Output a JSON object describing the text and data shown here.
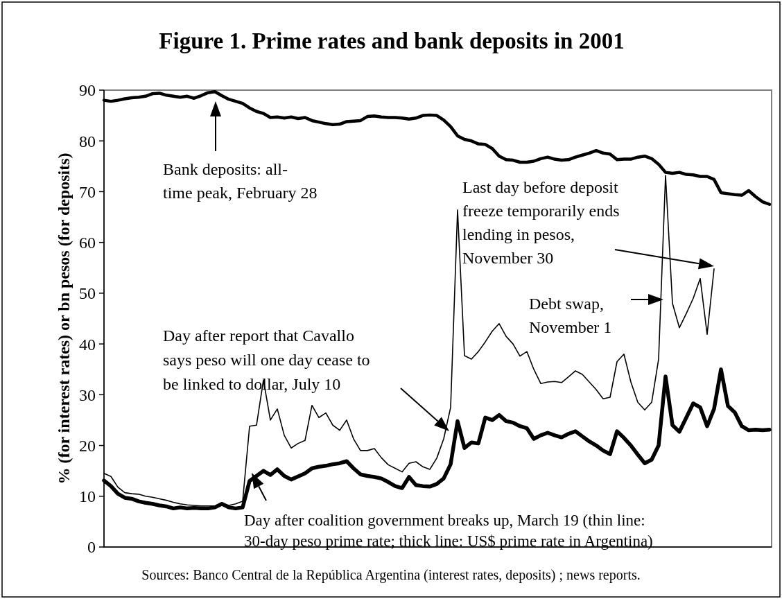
{
  "chart_data": {
    "type": "line",
    "title": "Figure 1. Prime rates and bank deposits in 2001",
    "ylabel": "% (for interest rates) or bn pesos (for deposits)",
    "categories": [
      null,
      null,
      null,
      null,
      null,
      null,
      null,
      null,
      null,
      null,
      null,
      null,
      null,
      null,
      null,
      null,
      null,
      null,
      null,
      null,
      null,
      null,
      null,
      null,
      null,
      null,
      null,
      null,
      null,
      null,
      null,
      null,
      null,
      null,
      null,
      null,
      null,
      null,
      null,
      null,
      null,
      null,
      null,
      null,
      null,
      null,
      null,
      null,
      null,
      null,
      null,
      null,
      null,
      null,
      null,
      null,
      null,
      null,
      null,
      null,
      null,
      null,
      null,
      null,
      null,
      null,
      null,
      null,
      null,
      null,
      null,
      null,
      null,
      null,
      null,
      null,
      null,
      null,
      null,
      null,
      null,
      null,
      null,
      null,
      null,
      null,
      null,
      null,
      null,
      null,
      null,
      null,
      null,
      null,
      null,
      null,
      null
    ],
    "series": [
      {
        "color": "#000000",
        "values": [
          14.5,
          13.9,
          11.8,
          10.7,
          10.5,
          10.4,
          10.0,
          9.8,
          9.5,
          9.2,
          8.8,
          8.5,
          8.3,
          8.2,
          8.1,
          8.1,
          8.1,
          8.7,
          8.2,
          8.5,
          9.0,
          23.8,
          24.0,
          32.9,
          25.0,
          27.2,
          22.0,
          19.5,
          20.4,
          21.0,
          27.9,
          25.5,
          26.4,
          24.0,
          23.0,
          25.0,
          21.3,
          19.0,
          19.0,
          19.4,
          17.6,
          16.2,
          15.5,
          14.8,
          16.5,
          16.8,
          15.8,
          15.3,
          17.5,
          21.3,
          27.5,
          66.4,
          37.7,
          37.0,
          38.5,
          40.4,
          42.5,
          44.0,
          41.5,
          40.0,
          37.6,
          38.5,
          35.0,
          32.2,
          32.5,
          32.6,
          32.4,
          33.5,
          34.7,
          34.0,
          32.5,
          31.0,
          29.2,
          29.5,
          36.5,
          38.0,
          32.5,
          28.5,
          27.0,
          28.5,
          37.0,
          73.2,
          48.0,
          43.2,
          46.0,
          49.0,
          52.9,
          41.9,
          54.8,
          null,
          null,
          null,
          null,
          null,
          null,
          null,
          null
        ]
      },
      {
        "color": "#000000",
        "values": [
          13.1,
          12.0,
          10.5,
          9.7,
          9.5,
          9.0,
          8.7,
          8.5,
          8.2,
          8.0,
          7.6,
          7.8,
          7.6,
          7.7,
          7.6,
          7.6,
          7.8,
          8.5,
          7.8,
          7.6,
          7.8,
          13.0,
          14.0,
          15.0,
          14.2,
          15.3,
          14.0,
          13.3,
          13.9,
          14.5,
          15.5,
          15.8,
          16.0,
          16.3,
          16.5,
          16.9,
          15.5,
          14.3,
          14.0,
          13.8,
          13.5,
          12.8,
          12.0,
          11.6,
          13.8,
          12.2,
          12.0,
          11.9,
          12.4,
          13.5,
          16.3,
          24.8,
          19.5,
          20.6,
          20.4,
          25.5,
          25.0,
          26.0,
          24.8,
          24.5,
          23.8,
          23.4,
          21.3,
          22.0,
          22.5,
          22.0,
          21.6,
          22.3,
          22.8,
          21.8,
          20.8,
          20.0,
          19.0,
          18.3,
          22.8,
          21.5,
          20.0,
          18.2,
          16.5,
          17.2,
          20.0,
          33.6,
          24.0,
          22.7,
          25.5,
          28.3,
          27.5,
          23.8,
          27.2,
          35.0,
          27.8,
          26.5,
          23.8,
          23.0,
          23.1,
          23.0,
          23.1
        ]
      },
      {
        "color": "#000000",
        "values": [
          88.0,
          87.8,
          88.0,
          88.3,
          88.5,
          88.6,
          88.8,
          89.3,
          89.4,
          89.0,
          88.8,
          88.6,
          88.8,
          88.4,
          88.9,
          89.5,
          89.7,
          88.9,
          88.2,
          87.8,
          87.4,
          86.5,
          85.8,
          85.4,
          84.6,
          84.7,
          84.5,
          84.7,
          84.4,
          84.6,
          84.0,
          83.7,
          83.4,
          83.2,
          83.3,
          83.8,
          83.9,
          84.0,
          84.8,
          84.9,
          84.7,
          84.6,
          84.6,
          84.5,
          84.3,
          84.5,
          85.0,
          85.1,
          85.0,
          84.1,
          82.8,
          81.0,
          80.3,
          80.0,
          79.4,
          79.3,
          78.5,
          77.0,
          76.3,
          76.2,
          75.8,
          75.8,
          76.0,
          76.5,
          76.8,
          76.4,
          76.2,
          76.3,
          76.8,
          77.2,
          77.6,
          78.1,
          77.6,
          77.4,
          76.3,
          76.4,
          76.4,
          76.8,
          77.0,
          76.5,
          75.4,
          73.8,
          73.6,
          73.8,
          73.4,
          73.3,
          73.0,
          73.0,
          72.4,
          69.8,
          69.6,
          69.4,
          69.3,
          70.2,
          69.0,
          68.0,
          67.5
        ]
      }
    ],
    "ylim": [
      0,
      90
    ],
    "yticks": [
      0,
      10,
      20,
      30,
      40,
      50,
      60,
      70,
      80,
      90
    ],
    "tick_labels": "y",
    "grid": false,
    "annotations": [
      "Bank deposits: all-time peak, February 28",
      "Last day before deposit freeze temporarily ends lending in pesos, November 30",
      "Debt swap, November 1",
      "Day after report that Cavallo says peso will one day cease to be linked to dollar, July 10",
      "Day after coalition government breaks up, March 19 (thin line: 30-day peso prime rate; thick line: US$ prime rate in Argentina)",
      "Sources: Banco Central de la República Argentina (interest rates, deposits) ; news reports."
    ]
  }
}
